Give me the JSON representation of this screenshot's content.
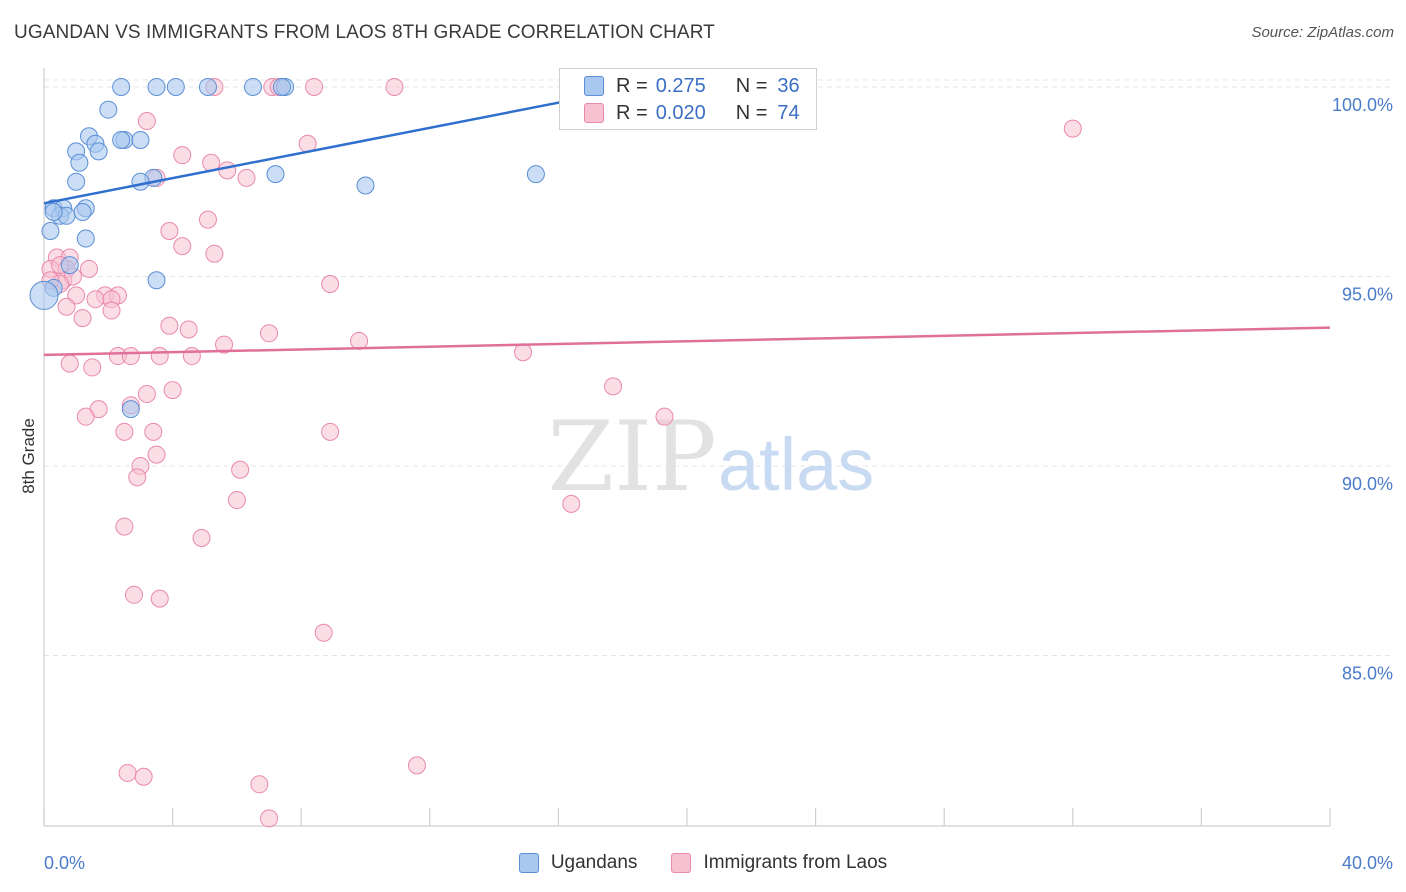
{
  "header": {
    "title": "UGANDAN VS IMMIGRANTS FROM LAOS 8TH GRADE CORRELATION CHART",
    "source": "Source: ZipAtlas.com"
  },
  "watermark": {
    "zip": "ZIP",
    "atlas": "atlas"
  },
  "legend": {
    "ugandans": {
      "r_label": "R =",
      "r_value": "0.275",
      "n_label": "N =",
      "n_value": "36"
    },
    "laos": {
      "r_label": "R =",
      "r_value": "0.020",
      "n_label": "N =",
      "n_value": "74"
    }
  },
  "colors": {
    "ugandans_fill": "#a9c8ef",
    "ugandans_stroke": "#5b8fd6",
    "ugandans_line": "#2f6fce",
    "laos_fill": "#f7c1d2",
    "laos_stroke": "#e98aab",
    "laos_line": "#e0709a",
    "tick_label": "#4a7cc9",
    "grid": "#e4e4e4"
  },
  "chart_data": {
    "type": "scatter",
    "title": "UGANDAN VS IMMIGRANTS FROM LAOS 8TH GRADE CORRELATION CHART",
    "xlabel": "",
    "ylabel": "8th Grade",
    "xlim": [
      0,
      40
    ],
    "ylim": [
      80.5,
      100.5
    ],
    "x_tick_labels": [
      "0.0%",
      "40.0%"
    ],
    "y_ticks": [
      85,
      90,
      95,
      100
    ],
    "y_tick_labels": [
      "85.0%",
      "90.0%",
      "95.0%",
      "100.0%"
    ],
    "grid": true,
    "legend_position": "top-center",
    "series": [
      {
        "name": "Ugandans",
        "r": 0.275,
        "n": 36,
        "trend": {
          "x": [
            0,
            18.5
          ],
          "y": [
            96.93,
            100.0
          ]
        },
        "points": [
          [
            2.4,
            100.0
          ],
          [
            3.5,
            100.0
          ],
          [
            4.1,
            100.0
          ],
          [
            5.1,
            100.0
          ],
          [
            7.5,
            100.0
          ],
          [
            2.0,
            99.4
          ],
          [
            1.4,
            98.7
          ],
          [
            2.5,
            98.6
          ],
          [
            2.4,
            98.6
          ],
          [
            3.0,
            98.6
          ],
          [
            1.6,
            98.5
          ],
          [
            1.0,
            98.3
          ],
          [
            1.7,
            98.3
          ],
          [
            1.1,
            98.0
          ],
          [
            7.2,
            97.7
          ],
          [
            3.4,
            97.6
          ],
          [
            3.0,
            97.5
          ],
          [
            10.0,
            97.4
          ],
          [
            15.3,
            97.7
          ],
          [
            1.0,
            97.5
          ],
          [
            0.3,
            96.8
          ],
          [
            0.6,
            96.8
          ],
          [
            1.3,
            96.8
          ],
          [
            0.5,
            96.6
          ],
          [
            0.7,
            96.6
          ],
          [
            1.2,
            96.7
          ],
          [
            0.2,
            96.2
          ],
          [
            1.3,
            96.0
          ],
          [
            0.8,
            95.3
          ],
          [
            3.5,
            94.9
          ],
          [
            0.3,
            94.7
          ],
          [
            0.0,
            94.5
          ],
          [
            2.7,
            91.5
          ],
          [
            0.3,
            96.7
          ],
          [
            7.4,
            100.0
          ],
          [
            6.5,
            100.0
          ]
        ]
      },
      {
        "name": "Immigrants from Laos",
        "r": 0.02,
        "n": 74,
        "trend": {
          "x": [
            0,
            40
          ],
          "y": [
            92.93,
            93.65
          ]
        },
        "points": [
          [
            5.3,
            100.0
          ],
          [
            7.1,
            100.0
          ],
          [
            7.3,
            100.0
          ],
          [
            8.4,
            100.0
          ],
          [
            10.9,
            100.0
          ],
          [
            32.0,
            98.9
          ],
          [
            3.2,
            99.1
          ],
          [
            8.2,
            98.5
          ],
          [
            4.3,
            98.2
          ],
          [
            5.2,
            98.0
          ],
          [
            5.7,
            97.8
          ],
          [
            3.5,
            97.6
          ],
          [
            6.3,
            97.6
          ],
          [
            5.1,
            96.5
          ],
          [
            3.9,
            96.2
          ],
          [
            4.3,
            95.8
          ],
          [
            5.3,
            95.6
          ],
          [
            0.4,
            95.5
          ],
          [
            0.8,
            95.5
          ],
          [
            1.4,
            95.2
          ],
          [
            0.7,
            95.2
          ],
          [
            0.2,
            95.2
          ],
          [
            0.6,
            94.9
          ],
          [
            0.9,
            95.0
          ],
          [
            0.5,
            94.8
          ],
          [
            8.9,
            94.8
          ],
          [
            1.9,
            94.5
          ],
          [
            2.3,
            94.5
          ],
          [
            1.6,
            94.4
          ],
          [
            2.1,
            94.4
          ],
          [
            1.0,
            94.5
          ],
          [
            0.7,
            94.2
          ],
          [
            2.1,
            94.1
          ],
          [
            1.2,
            93.9
          ],
          [
            3.9,
            93.7
          ],
          [
            4.5,
            93.6
          ],
          [
            7.0,
            93.5
          ],
          [
            9.8,
            93.3
          ],
          [
            5.6,
            93.2
          ],
          [
            2.3,
            92.9
          ],
          [
            2.7,
            92.9
          ],
          [
            3.6,
            92.9
          ],
          [
            4.6,
            92.9
          ],
          [
            14.9,
            93.0
          ],
          [
            0.8,
            92.7
          ],
          [
            1.5,
            92.6
          ],
          [
            17.7,
            92.1
          ],
          [
            4.0,
            92.0
          ],
          [
            3.2,
            91.9
          ],
          [
            2.7,
            91.6
          ],
          [
            1.7,
            91.5
          ],
          [
            1.3,
            91.3
          ],
          [
            19.3,
            91.3
          ],
          [
            2.5,
            90.9
          ],
          [
            3.4,
            90.9
          ],
          [
            8.9,
            90.9
          ],
          [
            3.5,
            90.3
          ],
          [
            3.0,
            90.0
          ],
          [
            6.1,
            89.9
          ],
          [
            2.9,
            89.7
          ],
          [
            6.0,
            89.1
          ],
          [
            16.4,
            89.0
          ],
          [
            2.5,
            88.4
          ],
          [
            4.9,
            88.1
          ],
          [
            2.8,
            86.6
          ],
          [
            3.6,
            86.5
          ],
          [
            8.7,
            85.6
          ],
          [
            11.6,
            82.1
          ],
          [
            2.6,
            81.9
          ],
          [
            3.1,
            81.8
          ],
          [
            6.7,
            81.6
          ],
          [
            7.0,
            80.7
          ],
          [
            0.5,
            95.3
          ],
          [
            0.2,
            94.9
          ]
        ]
      }
    ]
  },
  "bottom_legend": {
    "ugandans_label": "Ugandans",
    "laos_label": "Immigrants from Laos"
  }
}
